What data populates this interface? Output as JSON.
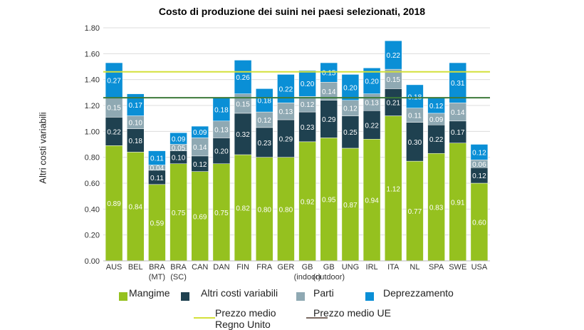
{
  "chart_data": {
    "type": "bar",
    "stacked": true,
    "title": "Costo di produzione dei suini nei paesi selezionati, 2018",
    "ylabel": "Altri costi variabili",
    "xlabel": "",
    "ylim": [
      0,
      1.8
    ],
    "yticks": [
      "0.00",
      "0.20",
      "0.40",
      "0.60",
      "0.80",
      "1.00",
      "1.20",
      "1.40",
      "1.60",
      "1.80"
    ],
    "grid": true,
    "legend_position": "bottom",
    "categories": [
      "AUS",
      "BEL",
      "BRA\n(MT)",
      "BRA\n(SC)",
      "CAN",
      "DAN",
      "FIN",
      "FRA",
      "GER",
      "GB\n(indoor)",
      "GB\n(outdoor)",
      "UNG",
      "IRL",
      "ITA",
      "NL",
      "SPA",
      "SWE",
      "USA"
    ],
    "series": [
      {
        "name": "Mangime",
        "color": "#95c11f",
        "values": [
          0.89,
          0.84,
          0.59,
          0.75,
          0.69,
          0.75,
          0.82,
          0.8,
          0.8,
          0.92,
          0.95,
          0.87,
          0.94,
          1.12,
          0.77,
          0.83,
          0.91,
          0.6
        ]
      },
      {
        "name": "Altri costi variabili",
        "color": "#1f4150",
        "values": [
          0.22,
          0.18,
          0.11,
          0.1,
          0.12,
          0.2,
          0.32,
          0.23,
          0.29,
          0.23,
          0.29,
          0.25,
          0.22,
          0.21,
          0.3,
          0.22,
          0.17,
          0.12
        ]
      },
      {
        "name": "Parti",
        "color": "#8fa9b3",
        "values": [
          0.15,
          0.1,
          0.04,
          0.05,
          0.14,
          0.13,
          0.15,
          0.12,
          0.13,
          0.12,
          0.14,
          0.12,
          0.13,
          0.15,
          0.11,
          0.09,
          0.14,
          0.06
        ]
      },
      {
        "name": "Deprezzamento",
        "color": "#0a8fd6",
        "values": [
          0.27,
          0.17,
          0.11,
          0.09,
          0.09,
          0.18,
          0.26,
          0.18,
          0.22,
          0.2,
          0.15,
          0.2,
          0.2,
          0.22,
          0.18,
          0.12,
          0.31,
          0.12
        ]
      }
    ],
    "reference_lines": [
      {
        "name": "Prezzo medio\nRegno Unito",
        "value": 1.46,
        "color": "#d4e03a"
      },
      {
        "name": "Prezzo medio UE",
        "value": 1.26,
        "color": "#3d7a3a"
      }
    ]
  }
}
